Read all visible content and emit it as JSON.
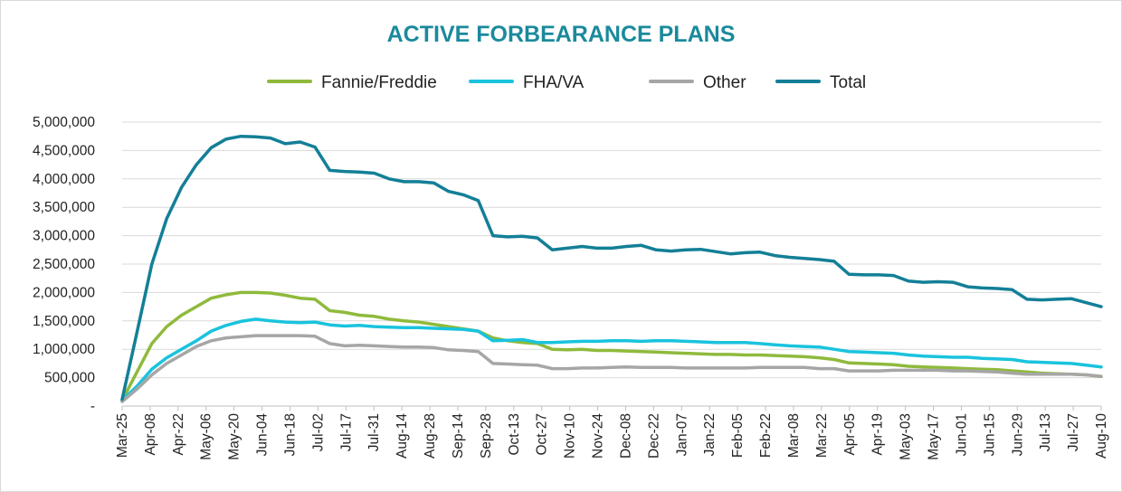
{
  "chart_data": {
    "type": "line",
    "title": "ACTIVE FORBEARANCE PLANS",
    "xlabel": "",
    "ylabel": "",
    "ylim": [
      0,
      5000000
    ],
    "yticks": [
      0,
      500000,
      1000000,
      1500000,
      2000000,
      2500000,
      3000000,
      3500000,
      4000000,
      4500000,
      5000000
    ],
    "ytick_labels": [
      "-",
      "500,000",
      "1,000,000",
      "1,500,000",
      "2,000,000",
      "2,500,000",
      "3,000,000",
      "3,500,000",
      "4,000,000",
      "4,500,000",
      "5,000,000"
    ],
    "x_tick_labels": [
      "Mar-25",
      "Apr-08",
      "Apr-22",
      "May-06",
      "May-20",
      "Jun-04",
      "Jun-18",
      "Jul-02",
      "Jul-17",
      "Jul-31",
      "Aug-14",
      "Aug-28",
      "Sep-14",
      "Sep-28",
      "Oct-13",
      "Oct-27",
      "Nov-10",
      "Nov-24",
      "Dec-08",
      "Dec-22",
      "Jan-07",
      "Jan-22",
      "Feb-05",
      "Feb-22",
      "Mar-08",
      "Mar-22",
      "Apr-05",
      "Apr-19",
      "May-03",
      "May-17",
      "Jun-01",
      "Jun-15",
      "Jun-29",
      "Jul-13",
      "Jul-27",
      "Aug-10"
    ],
    "legend_position": "top",
    "series": [
      {
        "name": "Fannie/Freddie",
        "color": "#8fba3c",
        "values": [
          100000,
          600000,
          1100000,
          1400000,
          1600000,
          1750000,
          1900000,
          1960000,
          2000000,
          2000000,
          1990000,
          1950000,
          1900000,
          1880000,
          1680000,
          1650000,
          1600000,
          1580000,
          1530000,
          1500000,
          1480000,
          1440000,
          1400000,
          1360000,
          1320000,
          1200000,
          1150000,
          1120000,
          1100000,
          1000000,
          990000,
          1000000,
          980000,
          980000,
          970000,
          960000,
          950000,
          940000,
          930000,
          920000,
          910000,
          910000,
          900000,
          900000,
          890000,
          880000,
          870000,
          850000,
          820000,
          760000,
          750000,
          740000,
          730000,
          700000,
          690000,
          680000,
          670000,
          660000,
          650000,
          640000,
          620000,
          600000,
          580000,
          570000,
          560000,
          550000,
          520000
        ]
      },
      {
        "name": "FHA/VA",
        "color": "#19c3dd",
        "values": [
          100000,
          350000,
          650000,
          850000,
          1000000,
          1150000,
          1320000,
          1420000,
          1490000,
          1530000,
          1500000,
          1480000,
          1470000,
          1480000,
          1430000,
          1410000,
          1420000,
          1400000,
          1390000,
          1380000,
          1380000,
          1370000,
          1360000,
          1350000,
          1320000,
          1150000,
          1160000,
          1170000,
          1120000,
          1120000,
          1130000,
          1140000,
          1140000,
          1150000,
          1150000,
          1140000,
          1150000,
          1150000,
          1140000,
          1130000,
          1120000,
          1120000,
          1120000,
          1100000,
          1080000,
          1060000,
          1050000,
          1040000,
          1000000,
          960000,
          950000,
          940000,
          930000,
          900000,
          880000,
          870000,
          860000,
          860000,
          840000,
          830000,
          820000,
          780000,
          770000,
          760000,
          750000,
          720000,
          690000
        ]
      },
      {
        "name": "Other",
        "color": "#a6a6a6",
        "values": [
          80000,
          300000,
          550000,
          750000,
          900000,
          1050000,
          1150000,
          1200000,
          1220000,
          1240000,
          1240000,
          1240000,
          1240000,
          1230000,
          1100000,
          1060000,
          1070000,
          1060000,
          1050000,
          1040000,
          1040000,
          1030000,
          990000,
          980000,
          960000,
          750000,
          740000,
          730000,
          720000,
          660000,
          660000,
          670000,
          670000,
          680000,
          690000,
          680000,
          680000,
          680000,
          670000,
          670000,
          670000,
          670000,
          670000,
          680000,
          680000,
          680000,
          680000,
          660000,
          660000,
          620000,
          620000,
          620000,
          630000,
          630000,
          630000,
          630000,
          620000,
          620000,
          610000,
          600000,
          580000,
          560000,
          560000,
          560000,
          560000,
          550000,
          520000
        ]
      },
      {
        "name": "Total",
        "color": "#137f97",
        "values": [
          120000,
          1300000,
          2500000,
          3300000,
          3850000,
          4250000,
          4550000,
          4700000,
          4750000,
          4740000,
          4720000,
          4620000,
          4650000,
          4560000,
          4150000,
          4130000,
          4120000,
          4100000,
          4000000,
          3950000,
          3950000,
          3930000,
          3780000,
          3720000,
          3620000,
          3000000,
          2980000,
          2990000,
          2960000,
          2750000,
          2780000,
          2810000,
          2780000,
          2780000,
          2810000,
          2830000,
          2750000,
          2730000,
          2750000,
          2760000,
          2720000,
          2680000,
          2700000,
          2710000,
          2650000,
          2620000,
          2600000,
          2580000,
          2550000,
          2320000,
          2310000,
          2310000,
          2300000,
          2200000,
          2180000,
          2190000,
          2180000,
          2100000,
          2080000,
          2070000,
          2050000,
          1880000,
          1870000,
          1880000,
          1890000,
          1820000,
          1750000
        ]
      }
    ]
  }
}
